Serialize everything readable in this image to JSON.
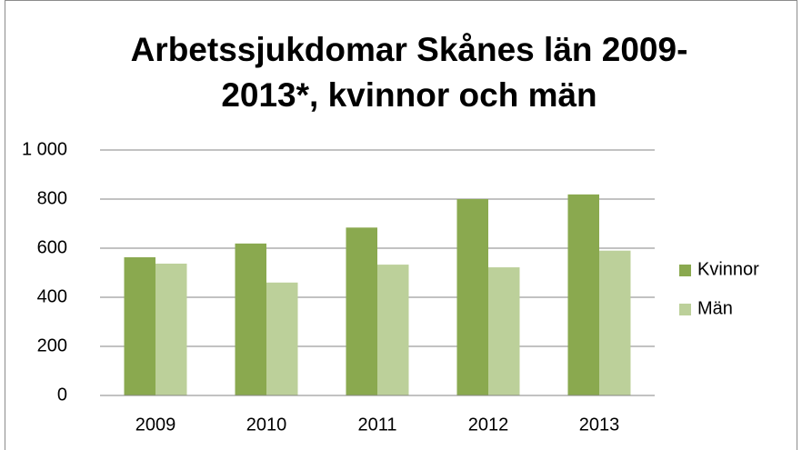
{
  "chart_data": {
    "type": "bar",
    "title": "Arbetssjukdomar Skånes län  2009-2013*, kvinnor och män",
    "categories": [
      "2009",
      "2010",
      "2011",
      "2012",
      "2013"
    ],
    "series": [
      {
        "name": "Kvinnor",
        "color": "#8aa94f",
        "values": [
          563,
          619,
          684,
          800,
          819
        ]
      },
      {
        "name": "Män",
        "color": "#bcd09a",
        "values": [
          537,
          460,
          533,
          522,
          590
        ]
      }
    ],
    "ylim": [
      0,
      1000
    ],
    "yticks": [
      0,
      200,
      400,
      600,
      800,
      {
        "value": 1000,
        "label": "1 000"
      }
    ],
    "grid": true,
    "legend": "right"
  }
}
